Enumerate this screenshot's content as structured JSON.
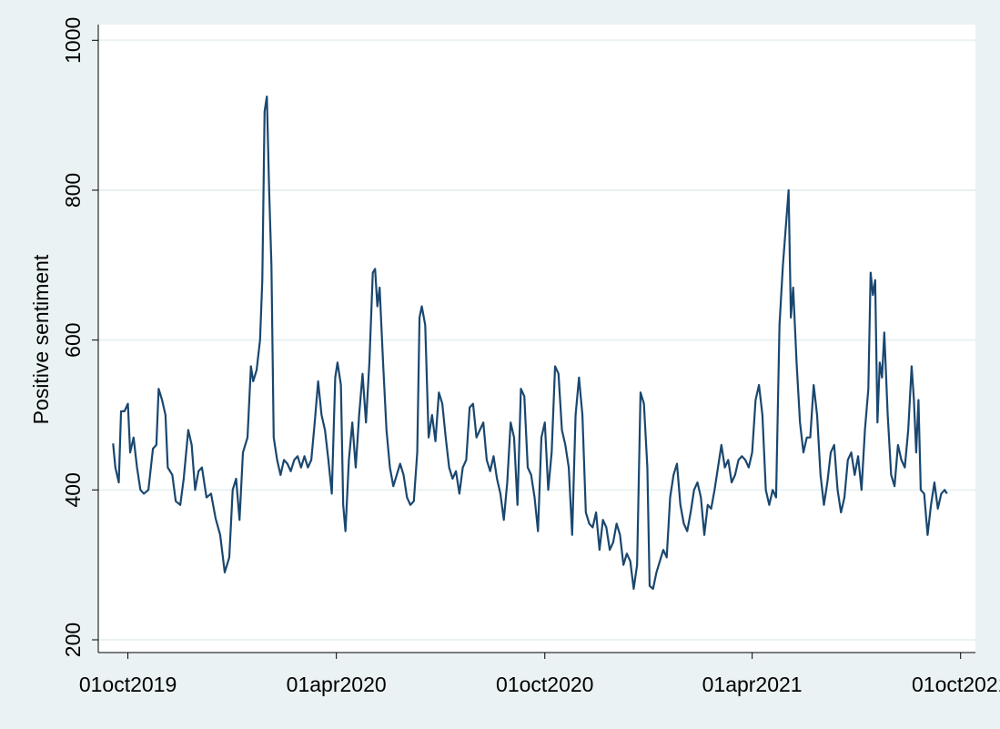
{
  "chart_data": {
    "type": "line",
    "y_label": "Positive sentiment",
    "x": [
      "2019-09-18",
      "2019-09-20",
      "2019-09-23",
      "2019-09-25",
      "2019-09-28",
      "2019-10-01",
      "2019-10-03",
      "2019-10-06",
      "2019-10-09",
      "2019-10-12",
      "2019-10-15",
      "2019-10-19",
      "2019-10-23",
      "2019-10-26",
      "2019-10-28",
      "2019-10-31",
      "2019-11-03",
      "2019-11-05",
      "2019-11-09",
      "2019-11-12",
      "2019-11-16",
      "2019-11-19",
      "2019-11-23",
      "2019-11-26",
      "2019-11-29",
      "2019-12-02",
      "2019-12-05",
      "2019-12-09",
      "2019-12-13",
      "2019-12-17",
      "2019-12-21",
      "2019-12-25",
      "2019-12-29",
      "2020-01-01",
      "2020-01-04",
      "2020-01-07",
      "2020-01-10",
      "2020-01-14",
      "2020-01-17",
      "2020-01-19",
      "2020-01-22",
      "2020-01-25",
      "2020-01-27",
      "2020-01-29",
      "2020-01-31",
      "2020-02-02",
      "2020-02-04",
      "2020-02-06",
      "2020-02-09",
      "2020-02-12",
      "2020-02-15",
      "2020-02-18",
      "2020-02-21",
      "2020-02-24",
      "2020-02-27",
      "2020-03-01",
      "2020-03-04",
      "2020-03-07",
      "2020-03-10",
      "2020-03-13",
      "2020-03-16",
      "2020-03-19",
      "2020-03-22",
      "2020-03-25",
      "2020-03-28",
      "2020-03-31",
      "2020-04-02",
      "2020-04-05",
      "2020-04-07",
      "2020-04-09",
      "2020-04-12",
      "2020-04-15",
      "2020-04-18",
      "2020-04-21",
      "2020-04-24",
      "2020-04-27",
      "2020-04-30",
      "2020-05-03",
      "2020-05-05",
      "2020-05-07",
      "2020-05-09",
      "2020-05-12",
      "2020-05-15",
      "2020-05-18",
      "2020-05-21",
      "2020-05-24",
      "2020-05-27",
      "2020-05-30",
      "2020-06-02",
      "2020-06-05",
      "2020-06-08",
      "2020-06-11",
      "2020-06-13",
      "2020-06-15",
      "2020-06-18",
      "2020-06-21",
      "2020-06-24",
      "2020-06-27",
      "2020-06-30",
      "2020-07-03",
      "2020-07-06",
      "2020-07-09",
      "2020-07-12",
      "2020-07-15",
      "2020-07-18",
      "2020-07-21",
      "2020-07-24",
      "2020-07-27",
      "2020-07-30",
      "2020-08-02",
      "2020-08-05",
      "2020-08-08",
      "2020-08-11",
      "2020-08-14",
      "2020-08-17",
      "2020-08-20",
      "2020-08-23",
      "2020-08-26",
      "2020-08-29",
      "2020-09-01",
      "2020-09-04",
      "2020-09-07",
      "2020-09-10",
      "2020-09-13",
      "2020-09-16",
      "2020-09-19",
      "2020-09-22",
      "2020-09-25",
      "2020-09-28",
      "2020-10-01",
      "2020-10-04",
      "2020-10-07",
      "2020-10-10",
      "2020-10-13",
      "2020-10-16",
      "2020-10-19",
      "2020-10-22",
      "2020-10-25",
      "2020-10-28",
      "2020-10-31",
      "2020-11-03",
      "2020-11-06",
      "2020-11-09",
      "2020-11-12",
      "2020-11-15",
      "2020-11-18",
      "2020-11-21",
      "2020-11-24",
      "2020-11-27",
      "2020-11-30",
      "2020-12-03",
      "2020-12-06",
      "2020-12-09",
      "2020-12-12",
      "2020-12-15",
      "2020-12-18",
      "2020-12-21",
      "2020-12-24",
      "2020-12-27",
      "2020-12-30",
      "2021-01-01",
      "2021-01-04",
      "2021-01-07",
      "2021-01-10",
      "2021-01-13",
      "2021-01-16",
      "2021-01-19",
      "2021-01-22",
      "2021-01-25",
      "2021-01-28",
      "2021-01-31",
      "2021-02-03",
      "2021-02-06",
      "2021-02-09",
      "2021-02-12",
      "2021-02-15",
      "2021-02-18",
      "2021-02-21",
      "2021-02-24",
      "2021-02-27",
      "2021-03-02",
      "2021-03-05",
      "2021-03-08",
      "2021-03-11",
      "2021-03-14",
      "2021-03-17",
      "2021-03-20",
      "2021-03-23",
      "2021-03-26",
      "2021-03-29",
      "2021-04-01",
      "2021-04-04",
      "2021-04-07",
      "2021-04-10",
      "2021-04-13",
      "2021-04-16",
      "2021-04-19",
      "2021-04-22",
      "2021-04-25",
      "2021-04-28",
      "2021-05-01",
      "2021-05-03",
      "2021-05-05",
      "2021-05-07",
      "2021-05-10",
      "2021-05-13",
      "2021-05-16",
      "2021-05-19",
      "2021-05-22",
      "2021-05-25",
      "2021-05-28",
      "2021-05-31",
      "2021-06-03",
      "2021-06-06",
      "2021-06-09",
      "2021-06-12",
      "2021-06-15",
      "2021-06-18",
      "2021-06-21",
      "2021-06-24",
      "2021-06-27",
      "2021-06-30",
      "2021-07-03",
      "2021-07-06",
      "2021-07-09",
      "2021-07-12",
      "2021-07-14",
      "2021-07-16",
      "2021-07-18",
      "2021-07-20",
      "2021-07-22",
      "2021-07-24",
      "2021-07-26",
      "2021-07-29",
      "2021-08-01",
      "2021-08-04",
      "2021-08-07",
      "2021-08-10",
      "2021-08-13",
      "2021-08-16",
      "2021-08-19",
      "2021-08-21",
      "2021-08-23",
      "2021-08-25",
      "2021-08-27",
      "2021-08-30",
      "2021-09-02",
      "2021-09-05",
      "2021-09-08",
      "2021-09-11",
      "2021-09-14",
      "2021-09-17",
      "2021-09-19"
    ],
    "series": [
      {
        "name": "Positive sentiment",
        "color": "#1a476f",
        "values": [
          462,
          430,
          410,
          505,
          505,
          515,
          450,
          470,
          430,
          400,
          395,
          400,
          455,
          460,
          535,
          520,
          500,
          430,
          420,
          385,
          380,
          415,
          480,
          460,
          400,
          425,
          430,
          390,
          395,
          362,
          340,
          290,
          310,
          400,
          415,
          360,
          450,
          470,
          565,
          545,
          560,
          600,
          680,
          905,
          925,
          800,
          700,
          470,
          440,
          420,
          440,
          435,
          425,
          440,
          445,
          430,
          445,
          430,
          440,
          490,
          545,
          500,
          480,
          440,
          395,
          550,
          570,
          540,
          380,
          345,
          440,
          490,
          430,
          500,
          555,
          490,
          570,
          690,
          695,
          645,
          670,
          570,
          480,
          430,
          405,
          420,
          435,
          420,
          390,
          380,
          385,
          450,
          630,
          645,
          620,
          470,
          500,
          465,
          530,
          515,
          470,
          430,
          415,
          425,
          395,
          430,
          440,
          510,
          515,
          470,
          480,
          490,
          440,
          425,
          445,
          415,
          395,
          360,
          410,
          490,
          470,
          380,
          535,
          525,
          430,
          420,
          390,
          345,
          470,
          490,
          400,
          450,
          565,
          555,
          480,
          460,
          430,
          340,
          500,
          550,
          500,
          370,
          355,
          350,
          370,
          320,
          360,
          350,
          320,
          330,
          355,
          340,
          300,
          315,
          305,
          268,
          300,
          530,
          515,
          430,
          272,
          268,
          290,
          305,
          320,
          310,
          390,
          420,
          435,
          380,
          355,
          345,
          370,
          400,
          410,
          390,
          340,
          380,
          375,
          400,
          430,
          460,
          430,
          440,
          410,
          420,
          440,
          445,
          440,
          430,
          450,
          520,
          540,
          500,
          400,
          380,
          400,
          390,
          620,
          700,
          760,
          800,
          630,
          670,
          570,
          490,
          450,
          470,
          470,
          540,
          500,
          420,
          380,
          410,
          450,
          460,
          400,
          370,
          390,
          440,
          450,
          420,
          445,
          400,
          480,
          535,
          690,
          660,
          680,
          490,
          570,
          550,
          610,
          500,
          420,
          405,
          460,
          440,
          430,
          480,
          565,
          520,
          450,
          520,
          400,
          395,
          340,
          380,
          410,
          375,
          395,
          400,
          395
        ]
      }
    ],
    "xlim": [
      "2019-09-05",
      "2021-10-14"
    ],
    "xticks": [
      {
        "value": "2019-10-01",
        "label": "01oct2019"
      },
      {
        "value": "2020-04-01",
        "label": "01apr2020"
      },
      {
        "value": "2020-10-01",
        "label": "01oct2020"
      },
      {
        "value": "2021-04-01",
        "label": "01apr2021"
      },
      {
        "value": "2021-10-01",
        "label": "01oct2021"
      }
    ],
    "ylim": [
      183,
      1021
    ],
    "yticks": [
      200,
      400,
      600,
      800,
      1000
    ],
    "grid": true
  }
}
